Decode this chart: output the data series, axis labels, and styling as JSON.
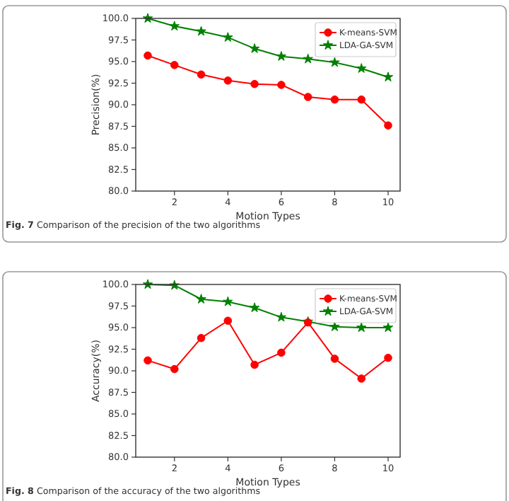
{
  "chart_data": [
    {
      "type": "line",
      "xlabel": "Motion Types",
      "ylabel": "Precision(%)",
      "annotations": [
        "Fig. 7 Comparison of the precision of the two algorithms"
      ],
      "x": [
        1,
        2,
        3,
        4,
        5,
        6,
        7,
        8,
        9,
        10
      ],
      "xlim": [
        0.55,
        10.45
      ],
      "xticks": [
        2,
        4,
        6,
        8,
        10
      ],
      "ylim": [
        80,
        100
      ],
      "yticks": [
        {
          "value": 80,
          "label": "80.0"
        },
        {
          "value": 82.5,
          "label": "82.5"
        },
        {
          "value": 85,
          "label": "85.0"
        },
        {
          "value": 87.5,
          "label": "87.5"
        },
        {
          "value": 90,
          "label": "90.0"
        },
        {
          "value": 92.5,
          "label": "92.5"
        },
        {
          "value": 95,
          "label": "95.0"
        },
        {
          "value": 97.5,
          "label": "97.5"
        },
        {
          "value": 100,
          "label": "100.0"
        }
      ],
      "legend": "top right",
      "grid": false,
      "series": [
        {
          "name": "K-means-SVM",
          "color": "#ff0000",
          "marker": "circle",
          "values": [
            95.7,
            94.6,
            93.5,
            92.8,
            92.4,
            92.3,
            90.9,
            90.6,
            90.6,
            87.6
          ]
        },
        {
          "name": "LDA-GA-SVM",
          "color": "#008000",
          "marker": "star",
          "values": [
            100,
            99.1,
            98.5,
            97.8,
            96.5,
            95.6,
            95.3,
            94.9,
            94.2,
            93.2
          ]
        }
      ]
    },
    {
      "type": "line",
      "xlabel": "Motion Types",
      "ylabel": "Accuracy(%)",
      "annotations": [
        "Fig. 8 Comparison of the accuracy of the two algorithms"
      ],
      "x": [
        1,
        2,
        3,
        4,
        5,
        6,
        7,
        8,
        9,
        10
      ],
      "xlim": [
        0.55,
        10.45
      ],
      "xticks": [
        2,
        4,
        6,
        8,
        10
      ],
      "ylim": [
        80,
        100
      ],
      "yticks": [
        {
          "value": 80,
          "label": "80.0"
        },
        {
          "value": 82.5,
          "label": "82.5"
        },
        {
          "value": 85,
          "label": "85.0"
        },
        {
          "value": 87.5,
          "label": "87.5"
        },
        {
          "value": 90,
          "label": "90.0"
        },
        {
          "value": 92.5,
          "label": "92.5"
        },
        {
          "value": 95,
          "label": "95.0"
        },
        {
          "value": 97.5,
          "label": "97.5"
        },
        {
          "value": 100,
          "label": "100.0"
        }
      ],
      "legend": "top right",
      "grid": false,
      "series": [
        {
          "name": "K-means-SVM",
          "color": "#ff0000",
          "marker": "circle",
          "values": [
            91.2,
            90.2,
            93.8,
            95.8,
            90.7,
            92.1,
            95.6,
            91.4,
            89.1,
            91.5
          ]
        },
        {
          "name": "LDA-GA-SVM",
          "color": "#008000",
          "marker": "star",
          "values": [
            100,
            99.9,
            98.3,
            98.0,
            97.3,
            96.2,
            95.7,
            95.1,
            95.0,
            95.0
          ]
        }
      ]
    }
  ]
}
